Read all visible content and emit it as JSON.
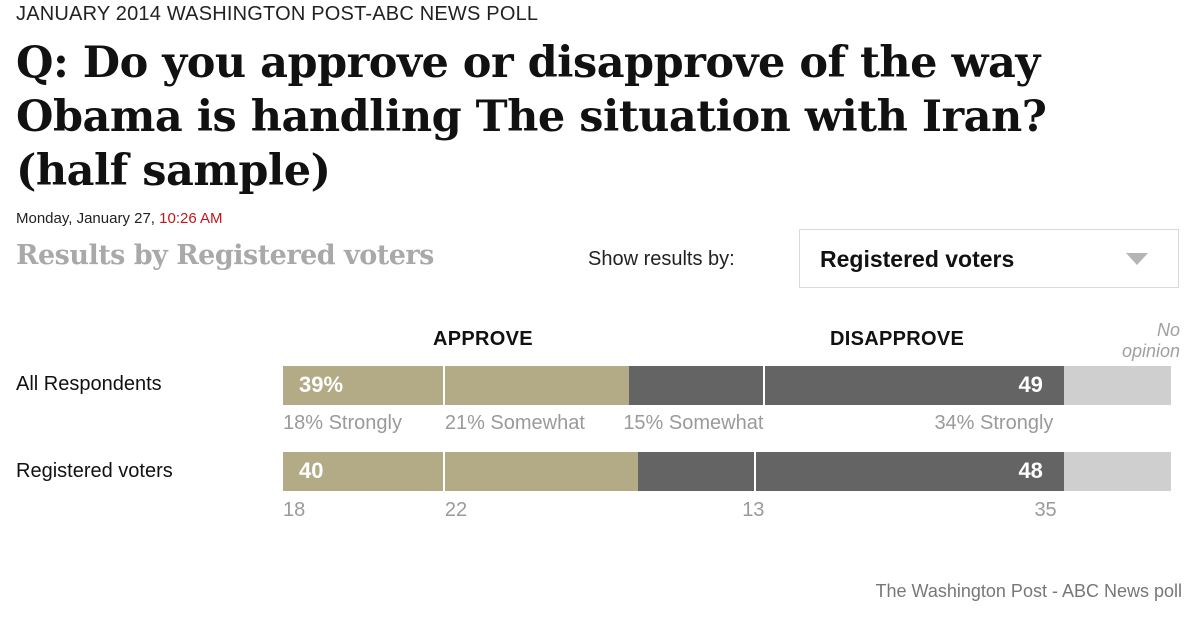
{
  "kicker": "JANUARY 2014 WASHINGTON POST-ABC NEWS POLL",
  "headline": "Q: Do you approve or disapprove of the way Obama is handling The situation with Iran? (half sample)",
  "dateline": {
    "day": "Monday, January 27, ",
    "time": "10:26 AM"
  },
  "subhead": "Results by Registered voters",
  "controls": {
    "show_label": "Show results by:",
    "dropdown_value": "Registered voters"
  },
  "columns": {
    "approve": "APPROVE",
    "disapprove": "DISAPPROVE",
    "no_opinion_line1": "No",
    "no_opinion_line2": "opinion"
  },
  "source": "The Washington Post - ABC News poll",
  "colors": {
    "approve": "#b3aa86",
    "disapprove": "#646464",
    "no_opinion": "#cfcfcf",
    "time": "#c4161c"
  },
  "chart_data": {
    "type": "bar",
    "stacked": true,
    "orientation": "horizontal",
    "categories": [
      "All Respondents",
      "Registered voters"
    ],
    "rows": [
      {
        "label": "All Respondents",
        "approve_total": 39,
        "approve_label": "39%",
        "approve_strongly": 18,
        "approve_somewhat": 21,
        "disapprove_total": 49,
        "disapprove_label": "49",
        "disapprove_somewhat": 15,
        "disapprove_strongly": 34,
        "no_opinion": 12,
        "sub_labels": [
          "18% Strongly",
          "21% Somewhat",
          "15% Somewhat",
          "34% Strongly"
        ]
      },
      {
        "label": "Registered voters",
        "approve_total": 40,
        "approve_label": "40",
        "approve_strongly": 18,
        "approve_somewhat": 22,
        "disapprove_total": 48,
        "disapprove_label": "48",
        "disapprove_somewhat": 13,
        "disapprove_strongly": 35,
        "no_opinion": 12,
        "sub_labels": [
          "18",
          "22",
          "13",
          "35"
        ]
      }
    ]
  }
}
